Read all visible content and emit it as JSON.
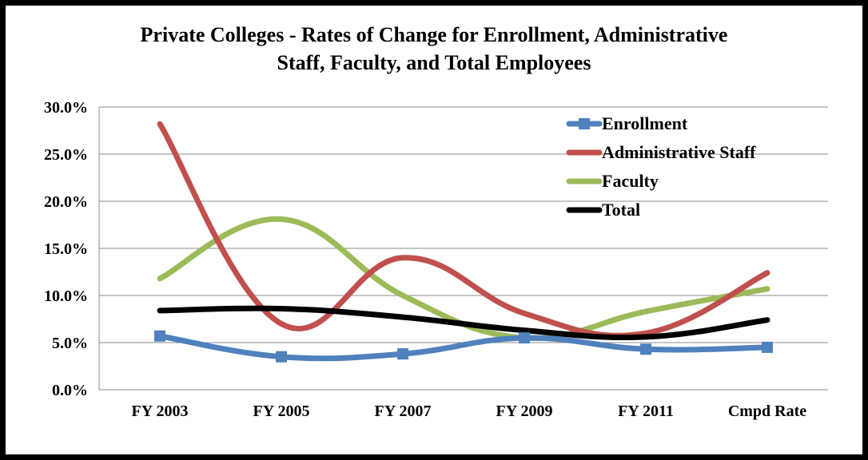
{
  "chart_data": {
    "type": "line",
    "title": "Private Colleges - Rates of Change for Enrollment, Administrative Staff, Faculty, and Total Employees",
    "title_lines": [
      "Private Colleges - Rates of Change for Enrollment, Administrative",
      "Staff, Faculty, and Total Employees"
    ],
    "categories": [
      "FY 2003",
      "FY 2005",
      "FY 2007",
      "FY 2009",
      "FY 2011",
      "Cmpd Rate"
    ],
    "ylim": [
      0,
      30
    ],
    "yticks": [
      0,
      5,
      10,
      15,
      20,
      25,
      30
    ],
    "ytick_labels": [
      "0.0%",
      "5.0%",
      "10.0%",
      "15.0%",
      "20.0%",
      "25.0%",
      "30.0%"
    ],
    "grid": true,
    "legend_position": "top-right",
    "series": [
      {
        "name": "Enrollment",
        "color": "#4f81bd",
        "marker": "square",
        "values": [
          5.7,
          3.5,
          3.8,
          5.5,
          4.3,
          4.5
        ]
      },
      {
        "name": "Administrative Staff",
        "color": "#c0504d",
        "marker": "none",
        "values": [
          28.2,
          7.0,
          14.0,
          8.1,
          6.0,
          12.4
        ]
      },
      {
        "name": "Faculty",
        "color": "#9bbb59",
        "marker": "none",
        "values": [
          11.8,
          18.1,
          10.0,
          5.5,
          8.3,
          10.7
        ]
      },
      {
        "name": "Total",
        "color": "#000000",
        "marker": "none",
        "values": [
          8.4,
          8.6,
          7.7,
          6.3,
          5.6,
          7.4
        ]
      }
    ]
  }
}
